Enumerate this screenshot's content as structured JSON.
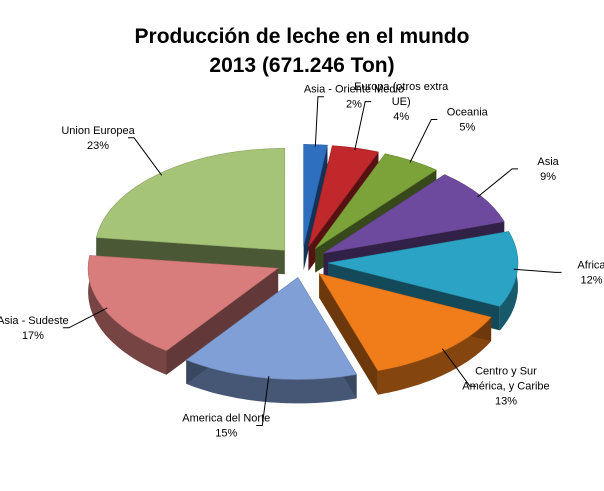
{
  "chart_data": {
    "type": "pie",
    "title": [
      "Producción de leche en el mundo",
      "2013 (671.246 Ton)"
    ],
    "slices": [
      {
        "name": "Asia - Oriente Medio",
        "label_lines": [
          "Asia - Oriente Medio"
        ],
        "value_label": "2%",
        "value": 2,
        "color": "#2e6fc0"
      },
      {
        "name": "Europa (otros extra UE)",
        "label_lines": [
          "Europa (otros extra",
          "UE)"
        ],
        "value_label": "4%",
        "value": 4,
        "color": "#c0282b"
      },
      {
        "name": "Oceania",
        "label_lines": [
          "Oceania"
        ],
        "value_label": "5%",
        "value": 5,
        "color": "#7ba33a"
      },
      {
        "name": "Asia",
        "label_lines": [
          "Asia"
        ],
        "value_label": "9%",
        "value": 9,
        "color": "#6e4a9e"
      },
      {
        "name": "Africa",
        "label_lines": [
          "Africa"
        ],
        "value_label": "12%",
        "value": 12,
        "color": "#2aa3c4"
      },
      {
        "name": "Centro y Sur América, y Caribe",
        "label_lines": [
          "Centro y Sur",
          "América, y Caribe"
        ],
        "value_label": "13%",
        "value": 13,
        "color": "#f07d1a"
      },
      {
        "name": "America del Norte",
        "label_lines": [
          "America del Norte"
        ],
        "value_label": "15%",
        "value": 15,
        "color": "#7f9fd6"
      },
      {
        "name": "Asia - Sudeste",
        "label_lines": [
          "Asia - Sudeste"
        ],
        "value_label": "17%",
        "value": 17,
        "color": "#d97c7c"
      },
      {
        "name": "Union Europea",
        "label_lines": [
          "Union Europea"
        ],
        "value_label": "23%",
        "value": 23,
        "color": "#a6c478"
      }
    ],
    "legend": "none",
    "style": "exploded-3d"
  }
}
